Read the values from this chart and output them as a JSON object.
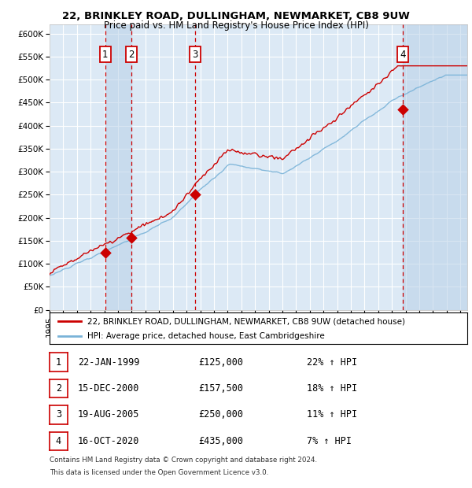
{
  "title1": "22, BRINKLEY ROAD, DULLINGHAM, NEWMARKET, CB8 9UW",
  "title2": "Price paid vs. HM Land Registry's House Price Index (HPI)",
  "ylabel_ticks": [
    "£0",
    "£50K",
    "£100K",
    "£150K",
    "£200K",
    "£250K",
    "£300K",
    "£350K",
    "£400K",
    "£450K",
    "£500K",
    "£550K",
    "£600K"
  ],
  "ytick_values": [
    0,
    50000,
    100000,
    150000,
    200000,
    250000,
    300000,
    350000,
    400000,
    450000,
    500000,
    550000,
    600000
  ],
  "ylim": [
    0,
    620000
  ],
  "xlim_start": 1995.0,
  "xlim_end": 2025.5,
  "bg_color": "#dce9f5",
  "grid_color": "#ffffff",
  "sale_color": "#cc0000",
  "hpi_color": "#7ab3d8",
  "dashed_line_color": "#cc0000",
  "legend_label_sale": "22, BRINKLEY ROAD, DULLINGHAM, NEWMARKET, CB8 9UW (detached house)",
  "legend_label_hpi": "HPI: Average price, detached house, East Cambridgeshire",
  "transactions": [
    {
      "num": 1,
      "date_x": 1999.06,
      "price": 125000
    },
    {
      "num": 2,
      "date_x": 2000.96,
      "price": 157500
    },
    {
      "num": 3,
      "date_x": 2005.63,
      "price": 250000
    },
    {
      "num": 4,
      "date_x": 2020.79,
      "price": 435000
    }
  ],
  "footer1": "Contains HM Land Registry data © Crown copyright and database right 2024.",
  "footer2": "This data is licensed under the Open Government Licence v3.0.",
  "table_rows": [
    [
      "1",
      "22-JAN-1999",
      "£125,000",
      "22% ↑ HPI"
    ],
    [
      "2",
      "15-DEC-2000",
      "£157,500",
      "18% ↑ HPI"
    ],
    [
      "3",
      "19-AUG-2005",
      "£250,000",
      "11% ↑ HPI"
    ],
    [
      "4",
      "16-OCT-2020",
      "£435,000",
      "7% ↑ HPI"
    ]
  ]
}
